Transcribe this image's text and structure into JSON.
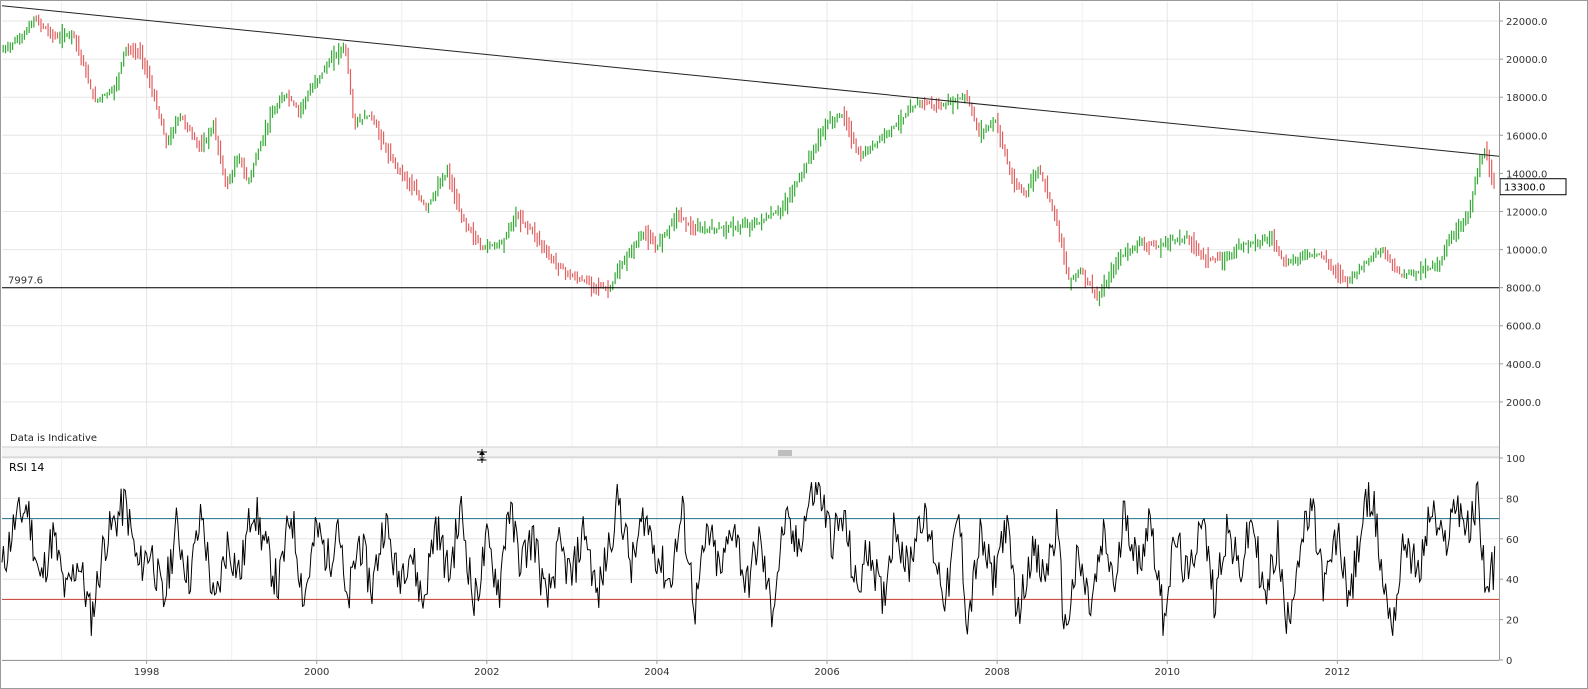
{
  "chart_data": [
    {
      "type": "candlestick",
      "title": "",
      "xlabel": "",
      "ylabel": "",
      "annotation": "Data is Indicative",
      "ylim": [
        0,
        23000
      ],
      "y_ticks": [
        "2000.0",
        "4000.0",
        "6000.0",
        "8000.0",
        "10000.0",
        "12000.0",
        "14000.0",
        "16000.0",
        "18000.0",
        "20000.0",
        "22000.0"
      ],
      "current_value_label": "13300.0",
      "current_value": 13300,
      "support_line": {
        "label": "7997.6",
        "value": 7997.6
      },
      "trend_line": {
        "from": [
          "1996.3",
          22800
        ],
        "to": [
          "2013.9",
          14900
        ]
      },
      "colors": {
        "up": "#33aa33",
        "down": "#e06060",
        "line": "#000000"
      },
      "x_start": 1996.3,
      "x_end": 2013.9,
      "anchors": [
        [
          "1996.3",
          20400
        ],
        [
          "1996.55",
          21200
        ],
        [
          "1996.7",
          22100
        ],
        [
          "1996.95",
          21100
        ],
        [
          "1997.15",
          21400
        ],
        [
          "1997.4",
          17800
        ],
        [
          "1997.65",
          18500
        ],
        [
          "1997.75",
          20500
        ],
        [
          "1997.95",
          20300
        ],
        [
          "1998.1",
          18000
        ],
        [
          "1998.25",
          15500
        ],
        [
          "1998.4",
          17100
        ],
        [
          "1998.65",
          15300
        ],
        [
          "1998.8",
          16500
        ],
        [
          "1998.95",
          13300
        ],
        [
          "1999.1",
          14900
        ],
        [
          "1999.2",
          13500
        ],
        [
          "1999.45",
          16800
        ],
        [
          "1999.65",
          18200
        ],
        [
          "1999.8",
          17300
        ],
        [
          "2000.0",
          18800
        ],
        [
          "2000.2",
          20100
        ],
        [
          "2000.35",
          20700
        ],
        [
          "2000.45",
          16600
        ],
        [
          "2000.65",
          17100
        ],
        [
          "2000.85",
          15000
        ],
        [
          "2001.1",
          13500
        ],
        [
          "2001.3",
          12200
        ],
        [
          "2001.55",
          14100
        ],
        [
          "2001.7",
          11800
        ],
        [
          "2001.95",
          10100
        ],
        [
          "2002.2",
          10400
        ],
        [
          "2002.35",
          11800
        ],
        [
          "2002.55",
          11000
        ],
        [
          "2002.75",
          9600
        ],
        [
          "2003.0",
          8600
        ],
        [
          "2003.25",
          8200
        ],
        [
          "2003.45",
          7900
        ],
        [
          "2003.6",
          9200
        ],
        [
          "2003.85",
          10900
        ],
        [
          "2004.0",
          10100
        ],
        [
          "2004.25",
          11900
        ],
        [
          "2004.45",
          11000
        ],
        [
          "2004.7",
          11100
        ],
        [
          "2005.0",
          11200
        ],
        [
          "2005.2",
          11400
        ],
        [
          "2005.5",
          12200
        ],
        [
          "2005.75",
          14300
        ],
        [
          "2006.0",
          16600
        ],
        [
          "2006.2",
          17100
        ],
        [
          "2006.4",
          14800
        ],
        [
          "2006.7",
          16100
        ],
        [
          "2006.95",
          17100
        ],
        [
          "2007.1",
          17800
        ],
        [
          "2007.35",
          17500
        ],
        [
          "2007.65",
          18100
        ],
        [
          "2007.8",
          16100
        ],
        [
          "2008.0",
          16800
        ],
        [
          "2008.2",
          13400
        ],
        [
          "2008.35",
          13000
        ],
        [
          "2008.5",
          14300
        ],
        [
          "2008.7",
          11800
        ],
        [
          "2008.85",
          8400
        ],
        [
          "2009.0",
          8900
        ],
        [
          "2009.2",
          7400
        ],
        [
          "2009.45",
          9600
        ],
        [
          "2009.7",
          10400
        ],
        [
          "2009.9",
          10100
        ],
        [
          "2010.05",
          10500
        ],
        [
          "2010.25",
          10600
        ],
        [
          "2010.45",
          9600
        ],
        [
          "2010.65",
          9400
        ],
        [
          "2010.9",
          10300
        ],
        [
          "2011.25",
          10600
        ],
        [
          "2011.4",
          9200
        ],
        [
          "2011.6",
          9700
        ],
        [
          "2011.8",
          9800
        ],
        [
          "2012.0",
          8800
        ],
        [
          "2012.15",
          8400
        ],
        [
          "2012.4",
          9600
        ],
        [
          "2012.55",
          9900
        ],
        [
          "2012.75",
          8700
        ],
        [
          "2013.0",
          8900
        ],
        [
          "2013.2",
          9200
        ],
        [
          "2013.35",
          10700
        ],
        [
          "2013.55",
          11800
        ],
        [
          "2013.7",
          14800
        ],
        [
          "2013.75",
          15100
        ],
        [
          "2013.85",
          13300
        ]
      ]
    },
    {
      "type": "line",
      "series": [
        {
          "name": "RSI 14"
        }
      ],
      "ylim": [
        0,
        100
      ],
      "y_ticks": [
        "0",
        "20",
        "40",
        "60",
        "80",
        "100"
      ],
      "overbought": 70,
      "oversold": 30,
      "colors": {
        "line": "#000000",
        "overbought": "#1f6f8b",
        "oversold": "#c0392b"
      },
      "x_ticks": [
        "1998",
        "2000",
        "2002",
        "2004",
        "2006",
        "2008",
        "2010",
        "2012"
      ],
      "points": [
        [
          "1996.3",
          45
        ],
        [
          "1996.45",
          68
        ],
        [
          "1996.6",
          76
        ],
        [
          "1996.75",
          38
        ],
        [
          "1996.9",
          62
        ],
        [
          "1997.05",
          32
        ],
        [
          "1997.2",
          50
        ],
        [
          "1997.35",
          20
        ],
        [
          "1997.5",
          58
        ],
        [
          "1997.65",
          70
        ],
        [
          "1997.75",
          78
        ],
        [
          "1997.9",
          45
        ],
        [
          "1998.05",
          55
        ],
        [
          "1998.2",
          28
        ],
        [
          "1998.35",
          66
        ],
        [
          "1998.5",
          40
        ],
        [
          "1998.65",
          72
        ],
        [
          "1998.8",
          25
        ],
        [
          "1998.95",
          58
        ],
        [
          "1999.1",
          42
        ],
        [
          "1999.25",
          78
        ],
        [
          "1999.4",
          55
        ],
        [
          "1999.55",
          36
        ],
        [
          "1999.7",
          74
        ],
        [
          "1999.85",
          30
        ],
        [
          "2000.0",
          65
        ],
        [
          "2000.15",
          48
        ],
        [
          "2000.25",
          72
        ],
        [
          "2000.35",
          24
        ],
        [
          "2000.5",
          60
        ],
        [
          "2000.65",
          35
        ],
        [
          "2000.8",
          70
        ],
        [
          "2000.95",
          40
        ],
        [
          "2001.1",
          55
        ],
        [
          "2001.25",
          28
        ],
        [
          "2001.4",
          68
        ],
        [
          "2001.55",
          42
        ],
        [
          "2001.7",
          74
        ],
        [
          "2001.85",
          27
        ],
        [
          "2002.0",
          58
        ],
        [
          "2002.15",
          35
        ],
        [
          "2002.25",
          77
        ],
        [
          "2002.4",
          48
        ],
        [
          "2002.55",
          62
        ],
        [
          "2002.7",
          27
        ],
        [
          "2002.85",
          55
        ],
        [
          "2003.0",
          40
        ],
        [
          "2003.15",
          66
        ],
        [
          "2003.3",
          30
        ],
        [
          "2003.45",
          60
        ],
        [
          "2003.55",
          80
        ],
        [
          "2003.7",
          45
        ],
        [
          "2003.85",
          72
        ],
        [
          "2004.0",
          52
        ],
        [
          "2004.15",
          38
        ],
        [
          "2004.3",
          73
        ],
        [
          "2004.45",
          26
        ],
        [
          "2004.6",
          64
        ],
        [
          "2004.75",
          42
        ],
        [
          "2004.9",
          70
        ],
        [
          "2005.05",
          35
        ],
        [
          "2005.2",
          60
        ],
        [
          "2005.35",
          24
        ],
        [
          "2005.5",
          68
        ],
        [
          "2005.65",
          55
        ],
        [
          "2005.8",
          80
        ],
        [
          "2005.9",
          86
        ],
        [
          "2006.05",
          60
        ],
        [
          "2006.2",
          70
        ],
        [
          "2006.35",
          33
        ],
        [
          "2006.5",
          58
        ],
        [
          "2006.65",
          27
        ],
        [
          "2006.8",
          70
        ],
        [
          "2006.95",
          44
        ],
        [
          "2007.1",
          74
        ],
        [
          "2007.25",
          55
        ],
        [
          "2007.4",
          30
        ],
        [
          "2007.55",
          72
        ],
        [
          "2007.65",
          18
        ],
        [
          "2007.8",
          60
        ],
        [
          "2007.95",
          40
        ],
        [
          "2008.1",
          68
        ],
        [
          "2008.25",
          22
        ],
        [
          "2008.4",
          55
        ],
        [
          "2008.55",
          40
        ],
        [
          "2008.7",
          65
        ],
        [
          "2008.8",
          14
        ],
        [
          "2008.95",
          50
        ],
        [
          "2009.1",
          25
        ],
        [
          "2009.25",
          60
        ],
        [
          "2009.4",
          35
        ],
        [
          "2009.5",
          78
        ],
        [
          "2009.65",
          45
        ],
        [
          "2009.8",
          72
        ],
        [
          "2009.95",
          22
        ],
        [
          "2010.1",
          60
        ],
        [
          "2010.25",
          38
        ],
        [
          "2010.4",
          74
        ],
        [
          "2010.55",
          30
        ],
        [
          "2010.7",
          66
        ],
        [
          "2010.85",
          42
        ],
        [
          "2011.0",
          70
        ],
        [
          "2011.15",
          28
        ],
        [
          "2011.3",
          60
        ],
        [
          "2011.4",
          15
        ],
        [
          "2011.55",
          55
        ],
        [
          "2011.7",
          74
        ],
        [
          "2011.85",
          35
        ],
        [
          "2012.0",
          62
        ],
        [
          "2012.15",
          30
        ],
        [
          "2012.3",
          70
        ],
        [
          "2012.4",
          84
        ],
        [
          "2012.55",
          35
        ],
        [
          "2012.65",
          18
        ],
        [
          "2012.8",
          62
        ],
        [
          "2012.95",
          40
        ],
        [
          "2013.1",
          75
        ],
        [
          "2013.25",
          55
        ],
        [
          "2013.4",
          80
        ],
        [
          "2013.55",
          62
        ],
        [
          "2013.65",
          82
        ],
        [
          "2013.75",
          34
        ],
        [
          "2013.85",
          48
        ]
      ]
    }
  ]
}
